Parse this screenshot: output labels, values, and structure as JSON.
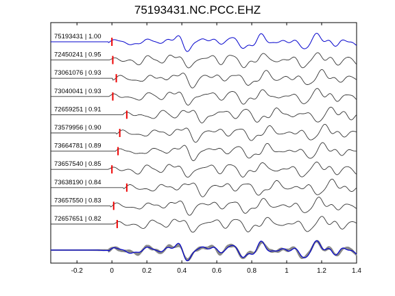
{
  "chart_data": {
    "type": "line",
    "title": "75193431.NC.PCC.EHZ",
    "xlabel": "",
    "ylabel": "",
    "xlim": [
      -0.35,
      1.4
    ],
    "xticks": [
      -0.2,
      0,
      0.2,
      0.4,
      0.6,
      0.8,
      1,
      1.2,
      1.4
    ],
    "xtick_labels": [
      "-0.2",
      "0",
      "0.2",
      "0.4",
      "0.6",
      "0.8",
      "1",
      "1.2",
      "1.4"
    ],
    "grid": false,
    "colors": {
      "reference": "#0000cc",
      "trace": "#333333",
      "pick": "#ee0000",
      "stack": "#888888",
      "axes": "#000000"
    },
    "series": [
      {
        "label": "75193431 | 1.00",
        "pick_time": 0.0
      },
      {
        "label": "72450241 | 0.95",
        "pick_time": 0.005
      },
      {
        "label": "73061076 | 0.93",
        "pick_time": 0.025
      },
      {
        "label": "73040041 | 0.93",
        "pick_time": 0.005
      },
      {
        "label": "72659251 | 0.91",
        "pick_time": 0.085
      },
      {
        "label": "73579956 | 0.90",
        "pick_time": 0.045
      },
      {
        "label": "73664781 | 0.89",
        "pick_time": 0.035
      },
      {
        "label": "73657540 | 0.85",
        "pick_time": 0.0
      },
      {
        "label": "73638190 | 0.84",
        "pick_time": 0.085
      },
      {
        "label": "73657550 | 0.83",
        "pick_time": 0.01
      },
      {
        "label": "72657651 | 0.82",
        "pick_time": 0.03
      }
    ]
  }
}
